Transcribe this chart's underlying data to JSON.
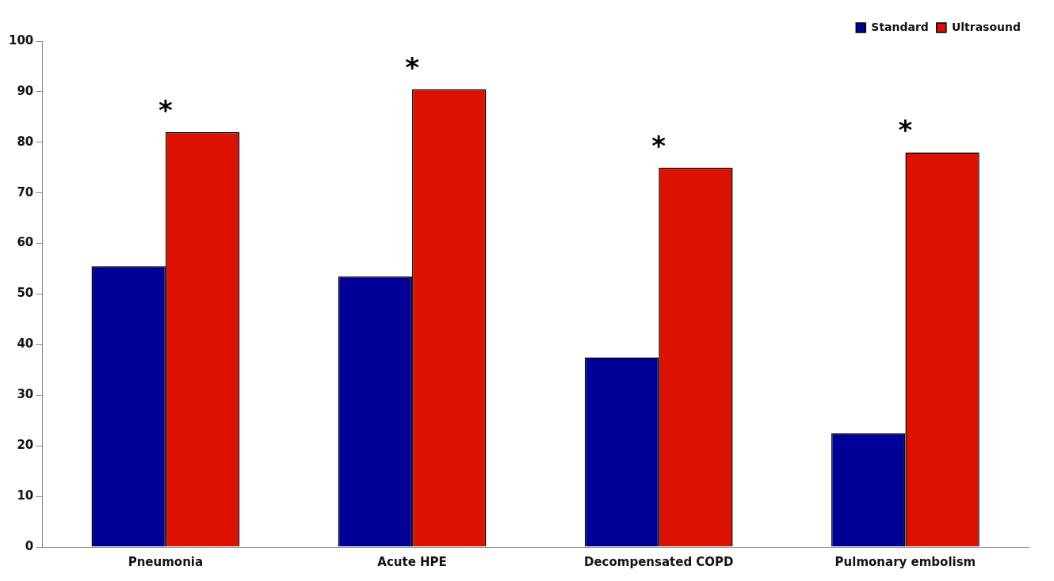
{
  "chart_data": {
    "type": "bar",
    "categories": [
      "Pneumonia",
      "Acute HPE",
      "Decompensated COPD",
      "Pulmonary embolism"
    ],
    "series": [
      {
        "name": "Standard",
        "color": "#000099",
        "values": [
          55.5,
          53.5,
          37.5,
          22.5
        ]
      },
      {
        "name": "Ultrasound",
        "color": "#dd1100",
        "values": [
          82,
          90.5,
          75,
          78
        ]
      }
    ],
    "ylim": [
      0,
      100
    ],
    "yticks": [
      0,
      10,
      20,
      30,
      40,
      50,
      60,
      70,
      80,
      90,
      100
    ],
    "grid": false,
    "legend": "top right",
    "annotations": [
      {
        "text": "*",
        "x": "Pneumonia",
        "y": 82
      },
      {
        "text": "*",
        "x": "Acute HPE",
        "y": 90.5
      },
      {
        "text": "*",
        "x": "Decompensated COPD",
        "y": 75
      },
      {
        "text": "*",
        "x": "Pulmonary embolism",
        "y": 78
      }
    ]
  }
}
